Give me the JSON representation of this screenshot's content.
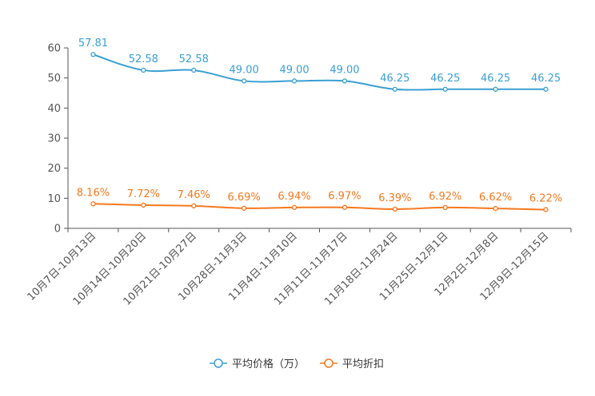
{
  "chart_data": {
    "type": "line",
    "categories": [
      "10月7日-10月13日",
      "10月14日-10月20日",
      "10月21日-10月27日",
      "10月28日-11月3日",
      "11月4日-11月10日",
      "11月11日-11月17日",
      "11月18日-11月24日",
      "11月25日-12月1日",
      "12月2日-12月8日",
      "12月9日-12月15日"
    ],
    "series": [
      {
        "name": "平均价格（万）",
        "color": "#3a9fd3",
        "values": [
          57.81,
          52.58,
          52.58,
          49.0,
          49.0,
          49.0,
          46.25,
          46.25,
          46.25,
          46.25
        ],
        "labels": [
          "57.81",
          "52.58",
          "52.58",
          "49.00",
          "49.00",
          "49.00",
          "46.25",
          "46.25",
          "46.25",
          "46.25"
        ]
      },
      {
        "name": "平均折扣",
        "color": "#f5781e",
        "values": [
          8.16,
          7.72,
          7.46,
          6.69,
          6.94,
          6.97,
          6.39,
          6.92,
          6.62,
          6.22
        ],
        "labels": [
          "8.16%",
          "7.72%",
          "7.46%",
          "6.69%",
          "6.94%",
          "6.97%",
          "6.39%",
          "6.92%",
          "6.62%",
          "6.22%"
        ]
      }
    ],
    "ylim": [
      0,
      60
    ],
    "yticks": [
      "0",
      "10",
      "20",
      "30",
      "40",
      "50",
      "60"
    ],
    "title": "",
    "xlabel": "",
    "ylabel": "",
    "legend_position": "bottom-center",
    "grid": false
  }
}
